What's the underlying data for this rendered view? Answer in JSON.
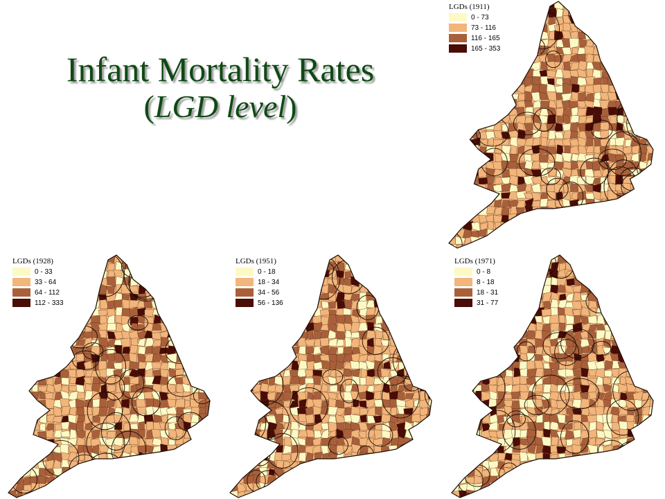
{
  "title": {
    "line1": "Infant Mortality Rates",
    "line2_open": "(",
    "line2_italic": "LGD level",
    "line2_close": ")"
  },
  "maps": [
    {
      "id": "1911",
      "legend_title": "LGDs (1911)",
      "classes": [
        {
          "range": "0 - 73",
          "color": "#fdf9c4"
        },
        {
          "range": "73 - 116",
          "color": "#f2b57a"
        },
        {
          "range": "116 - 165",
          "color": "#a9603a"
        },
        {
          "range": "165 - 353",
          "color": "#4a0c06"
        }
      ]
    },
    {
      "id": "1928",
      "legend_title": "LGDs (1928)",
      "classes": [
        {
          "range": "0 - 33",
          "color": "#fdf9c4"
        },
        {
          "range": "33 - 64",
          "color": "#f2b57a"
        },
        {
          "range": "64 - 112",
          "color": "#a9603a"
        },
        {
          "range": "112 - 333",
          "color": "#4a0c06"
        }
      ]
    },
    {
      "id": "1951",
      "legend_title": "LGDs (1951)",
      "classes": [
        {
          "range": "0 - 18",
          "color": "#fdf9c4"
        },
        {
          "range": "18 - 34",
          "color": "#f2b57a"
        },
        {
          "range": "34 - 56",
          "color": "#a9603a"
        },
        {
          "range": "56 - 136",
          "color": "#4a0c06"
        }
      ]
    },
    {
      "id": "1971",
      "legend_title": "LGDs (1971)",
      "classes": [
        {
          "range": "0 - 8",
          "color": "#fdf9c4"
        },
        {
          "range": "8 - 18",
          "color": "#f2b57a"
        },
        {
          "range": "18 - 31",
          "color": "#a9603a"
        },
        {
          "range": "31 - 77",
          "color": "#4a0c06"
        }
      ]
    }
  ]
}
